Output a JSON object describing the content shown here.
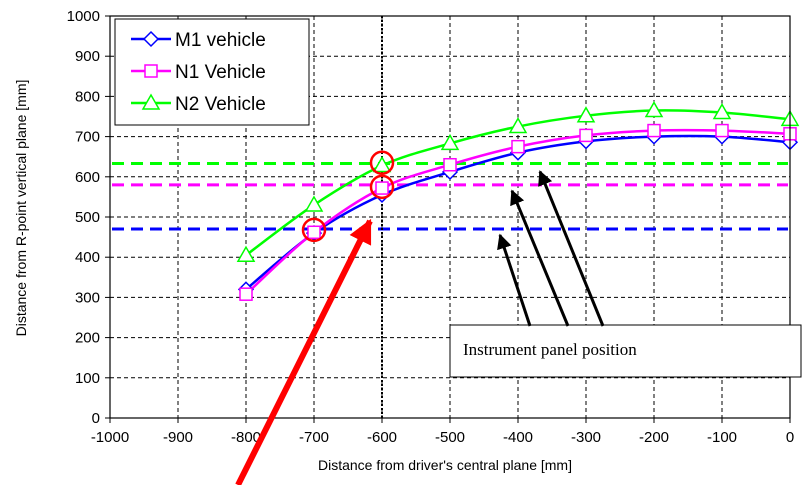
{
  "chart_data": {
    "type": "line",
    "title": "",
    "xlabel": "Distance from driver's central plane [mm]",
    "ylabel": "Distance from R-point vertical plane [mm]",
    "xlim": [
      -1000,
      0
    ],
    "ylim": [
      0,
      1000
    ],
    "xticks": [
      -1000,
      -900,
      -800,
      -700,
      -600,
      -500,
      -400,
      -300,
      -200,
      -100,
      0
    ],
    "yticks": [
      0,
      100,
      200,
      300,
      400,
      500,
      600,
      700,
      800,
      900,
      1000
    ],
    "grid": true,
    "legend_position": "top-left",
    "series": [
      {
        "name": "M1 vehicle",
        "color": "#0000ff",
        "marker": "diamond",
        "x": [
          -800,
          -700,
          -600,
          -500,
          -400,
          -300,
          -200,
          -100,
          0
        ],
        "y": [
          320,
          460,
          555,
          612,
          660,
          688,
          700,
          700,
          686
        ]
      },
      {
        "name": "N1 Vehicle",
        "color": "#ff00ff",
        "marker": "square",
        "x": [
          -800,
          -700,
          -600,
          -500,
          -400,
          -300,
          -200,
          -100,
          0
        ],
        "y": [
          308,
          462,
          572,
          630,
          675,
          703,
          715,
          715,
          707
        ]
      },
      {
        "name": "N2 Vehicle",
        "color": "#00ff00",
        "marker": "triangle",
        "x": [
          -800,
          -700,
          -600,
          -500,
          -400,
          -300,
          -200,
          -100,
          0
        ],
        "y": [
          405,
          530,
          628,
          683,
          725,
          752,
          765,
          760,
          743
        ]
      }
    ],
    "reference_lines": [
      {
        "y": 470,
        "color": "#0000ff",
        "style": "dashed"
      },
      {
        "y": 580,
        "color": "#ff00ff",
        "style": "dashed"
      },
      {
        "y": 633,
        "color": "#00ff00",
        "style": "dashed"
      }
    ],
    "vertical_line": {
      "x": -600,
      "color": "#000000",
      "style": "dotted"
    },
    "highlight_circles": [
      {
        "x": -700,
        "y": 468,
        "color": "#ff0000"
      },
      {
        "x": -600,
        "y": 575,
        "color": "#ff0000"
      },
      {
        "x": -600,
        "y": 635,
        "color": "#ff0000"
      }
    ],
    "annotation": {
      "text": "Instrument panel position"
    }
  }
}
